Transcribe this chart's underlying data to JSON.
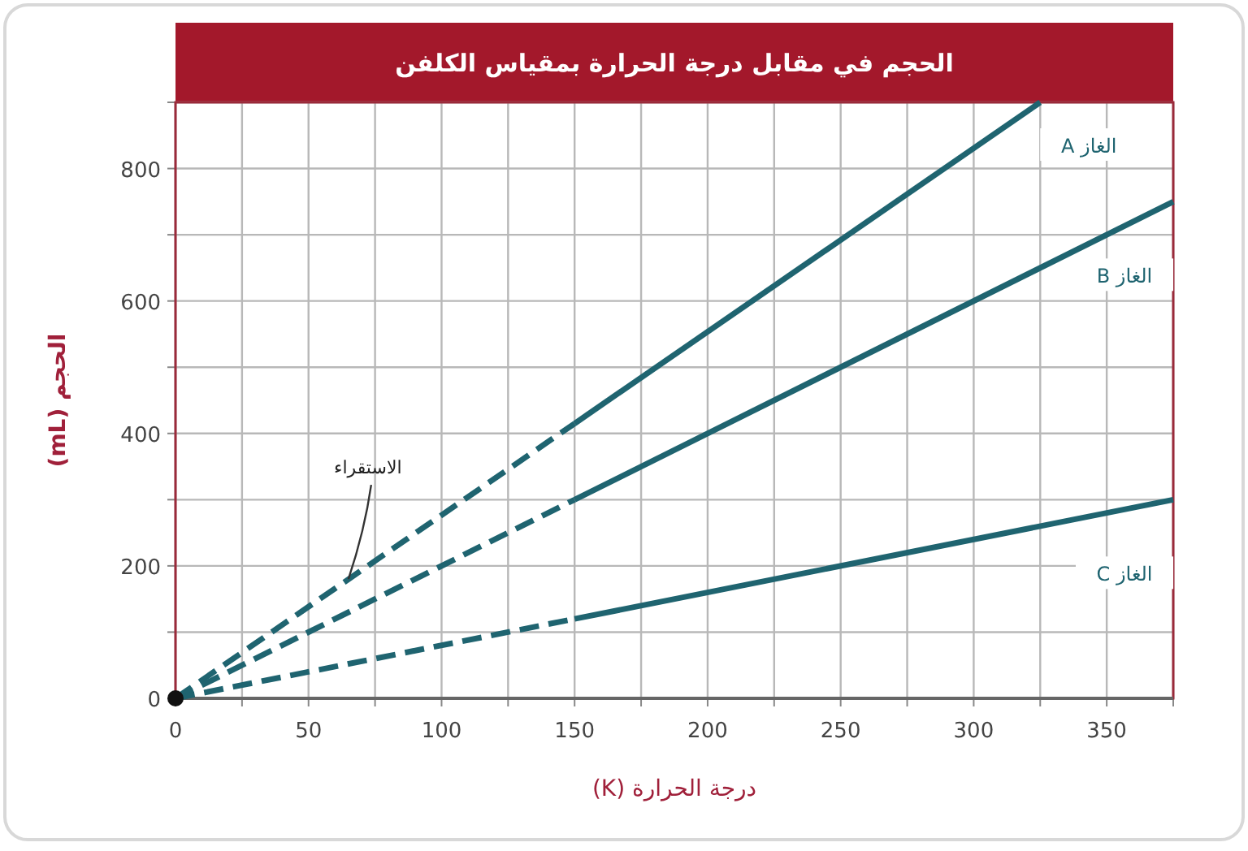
{
  "chart_data": {
    "type": "line",
    "title": "الحجم في مقابل درجة الحرارة بمقياس الكلفن",
    "xlabel": "درجة الحرارة (K)",
    "ylabel": "الحجم (mL)",
    "xlim": [
      0,
      375
    ],
    "ylim": [
      0,
      900
    ],
    "xticks": [
      0,
      {
        "value": 25,
        "label": null
      },
      50,
      {
        "value": 75,
        "label": null
      },
      100,
      {
        "value": 125,
        "label": null
      },
      150,
      {
        "value": 175,
        "label": null
      },
      200,
      {
        "value": 225,
        "label": null
      },
      250,
      {
        "value": 275,
        "label": null
      },
      300,
      {
        "value": 325,
        "label": null
      },
      350,
      {
        "value": 375,
        "label": null
      }
    ],
    "yticks": [
      0,
      {
        "value": 100,
        "label": null
      },
      200,
      {
        "value": 300,
        "label": null
      },
      400,
      {
        "value": 500,
        "label": null
      },
      600,
      {
        "value": 700,
        "label": null
      },
      800,
      {
        "value": 900,
        "label": null
      }
    ],
    "grid": true,
    "series": [
      {
        "color": "#1f6470",
        "line_style": "dashed",
        "x": [
          0,
          150
        ],
        "values": [
          0,
          415
        ]
      },
      {
        "name": "الغاز A",
        "color": "#1f6470",
        "line_style": "solid",
        "x": [
          150,
          325
        ],
        "values": [
          415,
          900
        ]
      },
      {
        "color": "#1f6470",
        "line_style": "dashed",
        "x": [
          0,
          150
        ],
        "values": [
          0,
          300
        ]
      },
      {
        "name": "الغاز B",
        "color": "#1f6470",
        "line_style": "solid",
        "x": [
          150,
          375
        ],
        "values": [
          300,
          750
        ]
      },
      {
        "color": "#1f6470",
        "line_style": "dashed",
        "x": [
          0,
          150
        ],
        "values": [
          0,
          120
        ]
      },
      {
        "name": "الغاز C",
        "color": "#1f6470",
        "line_style": "solid",
        "x": [
          150,
          375
        ],
        "values": [
          120,
          300
        ]
      },
      {
        "type": "scatter",
        "color": "#111111",
        "marker": "circle",
        "x": [
          0
        ],
        "values": [
          0
        ]
      }
    ],
    "annotations": [
      {
        "text": "الاستقراء",
        "x": 65,
        "y": 180
      }
    ]
  }
}
